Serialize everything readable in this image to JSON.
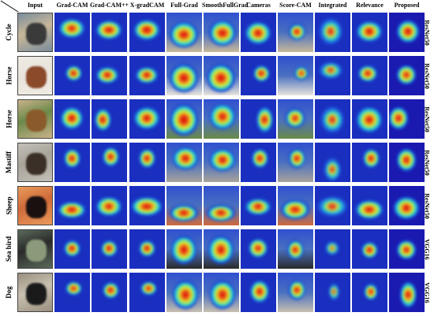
{
  "columns": [
    "Input",
    "Grad-CAM",
    "Grad-CAM++",
    "X-gradCAM",
    "Full-Grad",
    "SmoothFullGrad",
    "Cameras",
    "Score-CAM",
    "Integrated",
    "Relevance",
    "Proposed"
  ],
  "rows": [
    {
      "label": "Cycle",
      "network": "ResNet50",
      "input_colors": [
        "#c8b89a",
        "#3a3a3a",
        "#7b8c9c"
      ]
    },
    {
      "label": "Horse",
      "network": "ResNet50",
      "input_colors": [
        "#e8e4dc",
        "#8b4a2a",
        "#f0ece4"
      ]
    },
    {
      "label": "Horse",
      "network": "ResNet50",
      "input_colors": [
        "#6b8a4a",
        "#8b5a2a",
        "#c9b28a"
      ]
    },
    {
      "label": "Mastiff",
      "network": "ResNet50",
      "input_colors": [
        "#a8a49a",
        "#3a3028",
        "#c2bfb8"
      ]
    },
    {
      "label": "Sheep",
      "network": "ResNet50",
      "input_colors": [
        "#d06a3a",
        "#1a1010",
        "#e89a5a"
      ]
    },
    {
      "label": "Sea bird",
      "network": "VGG16",
      "input_colors": [
        "#2a2a2a",
        "#8a9a7a",
        "#5a6a5a"
      ]
    },
    {
      "label": "Dog",
      "network": "VGG16",
      "input_colors": [
        "#c8c0b0",
        "#1a1a1a",
        "#9a9080"
      ]
    }
  ]
}
